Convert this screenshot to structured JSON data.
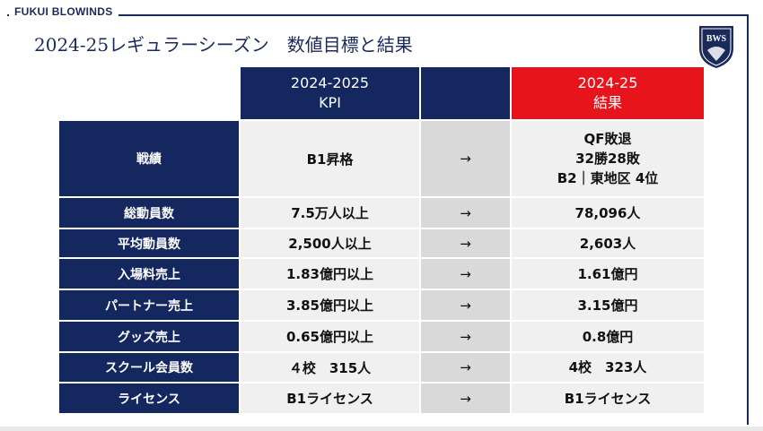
{
  "brand": "FUKUI BLOWINDS",
  "title": "2024-25レギュラーシーズン　数値目標と結果",
  "logo_text": "BWS",
  "header": {
    "kpi": "2024-2025\nKPI",
    "result": "2024-25\n結果"
  },
  "rows": [
    {
      "label": "戦績",
      "kpi": "B1昇格",
      "arrow": "→",
      "result": "QF敗退\n32勝28敗\nB2｜東地区 4位"
    },
    {
      "label": "総動員数",
      "kpi": "7.5万人以上",
      "arrow": "→",
      "result": "78,096人"
    },
    {
      "label": "平均動員数",
      "kpi": "2,500人以上",
      "arrow": "→",
      "result": "2,603人"
    },
    {
      "label": "入場料売上",
      "kpi": "1.83億円以上",
      "arrow": "→",
      "result": "1.61億円"
    },
    {
      "label": "パートナー売上",
      "kpi": "3.85億円以上",
      "arrow": "→",
      "result": "3.15億円"
    },
    {
      "label": "グッズ売上",
      "kpi": "0.65億円以上",
      "arrow": "→",
      "result": "0.8億円"
    },
    {
      "label": "スクール会員数",
      "kpi": "４校　315人",
      "arrow": "→",
      "result": "4校　323人"
    },
    {
      "label": "ライセンス",
      "kpi": "B1ライセンス",
      "arrow": "→",
      "result": "B1ライセンス"
    }
  ],
  "colors": {
    "navy": "#14275e",
    "red": "#e8141c",
    "light": "#f0f0f0",
    "mid": "#d9d9d9"
  }
}
